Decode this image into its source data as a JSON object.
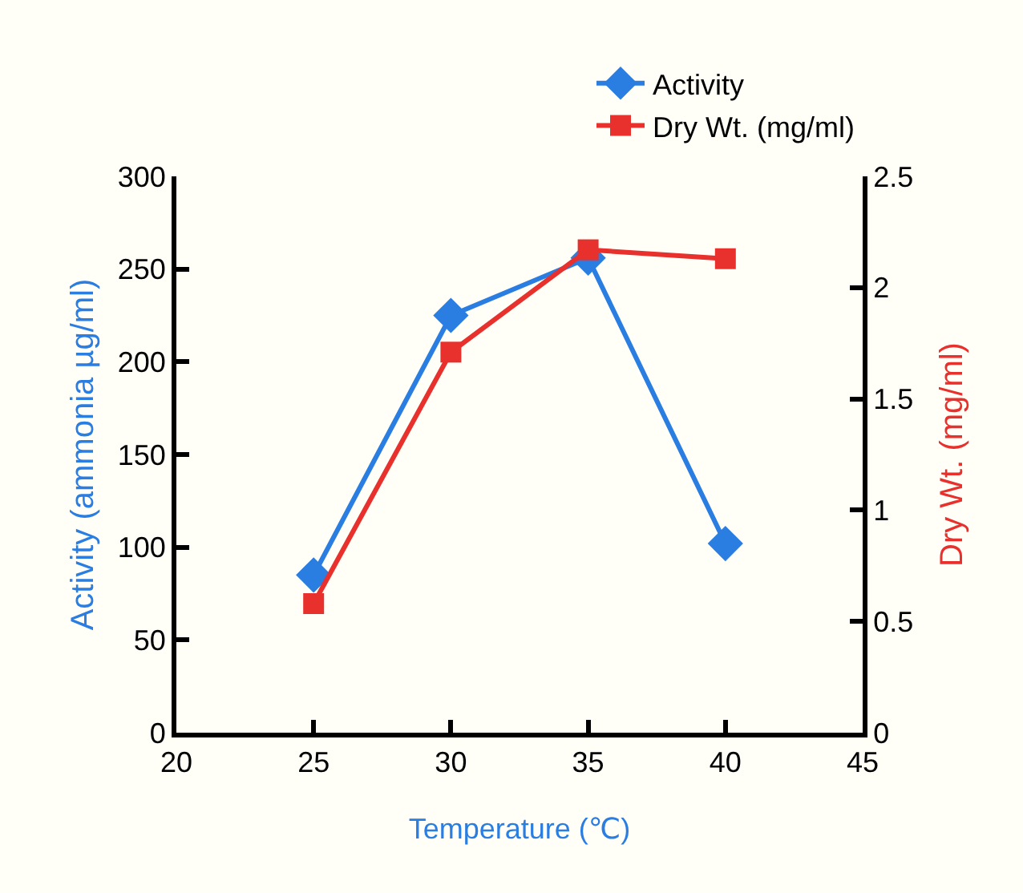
{
  "chart_data": {
    "type": "line",
    "xlabel": "Temperature (℃)",
    "ylabel": "Activity (ammonia µg/ml)",
    "y2label": "Dry Wt. (mg/ml)",
    "x": [
      25,
      30,
      35,
      40
    ],
    "series": [
      {
        "name": "Activity",
        "color": "#2a7de1",
        "marker": "diamond",
        "values": [
          85,
          225,
          256,
          102
        ]
      },
      {
        "name": "Dry Wt. (mg/ml)",
        "color": "#e8302c",
        "marker": "square",
        "axis": "y2",
        "values": [
          0.58,
          1.71,
          2.17,
          2.13
        ]
      }
    ],
    "xlim": [
      20,
      45
    ],
    "xticks": [
      20,
      25,
      30,
      35,
      40,
      45
    ],
    "ylim": [
      0,
      300
    ],
    "yticks": [
      0,
      50,
      100,
      150,
      200,
      250,
      300
    ],
    "y2lim": [
      0,
      2.5
    ],
    "y2ticks": [
      0,
      0.5,
      1,
      1.5,
      2,
      2.5
    ],
    "grid": false,
    "legend": "top right",
    "line_style": "solid"
  }
}
